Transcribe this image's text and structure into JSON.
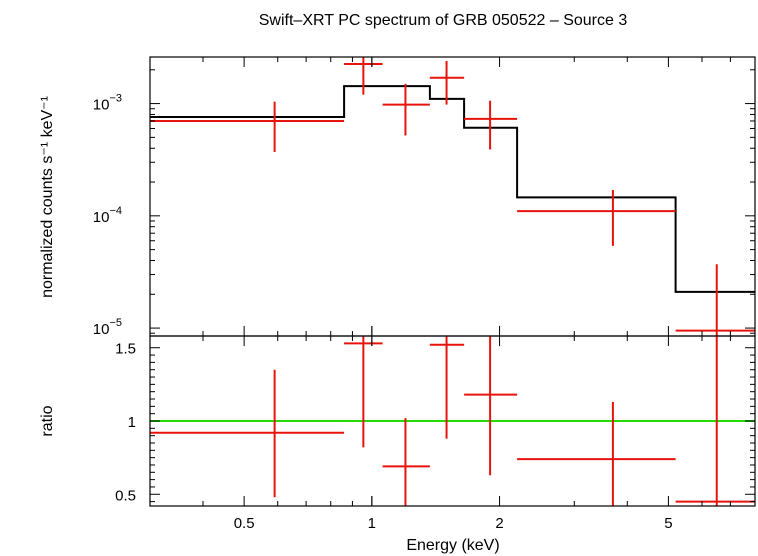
{
  "chart_data": [
    {
      "type": "scatter",
      "title": "Swift–XRT PC spectrum of GRB 050522 – Source 3",
      "ylabel": "normalized counts s⁻¹ keV⁻¹",
      "xlabel": "",
      "xscale": "log",
      "yscale": "log",
      "xlim": [
        0.3,
        8.0
      ],
      "ylim": [
        8.5e-06,
        0.0026
      ],
      "yticks": [
        {
          "value": 0.001,
          "base": "10",
          "exp": "−3"
        },
        {
          "value": 0.0001,
          "base": "10",
          "exp": "−4"
        },
        {
          "value": 1e-05,
          "base": "10",
          "exp": "−5"
        }
      ],
      "data_color": "#e8140c",
      "model_color": "#000000",
      "series": [
        {
          "kind": "data",
          "points": [
            {
              "x": 0.59,
              "xlo": 0.3,
              "xhi": 0.86,
              "y": 0.0007,
              "ylo": 0.00037,
              "yhi": 0.00104
            },
            {
              "x": 0.955,
              "xlo": 0.86,
              "xhi": 1.06,
              "y": 0.00225,
              "ylo": 0.0012,
              "yhi": 0.0027
            },
            {
              "x": 1.2,
              "xlo": 1.06,
              "xhi": 1.37,
              "y": 0.00098,
              "ylo": 0.00052,
              "yhi": 0.0015
            },
            {
              "x": 1.5,
              "xlo": 1.37,
              "xhi": 1.65,
              "y": 0.0017,
              "ylo": 0.00098,
              "yhi": 0.0024
            },
            {
              "x": 1.9,
              "xlo": 1.65,
              "xhi": 2.2,
              "y": 0.00073,
              "ylo": 0.00039,
              "yhi": 0.00106
            },
            {
              "x": 3.7,
              "xlo": 2.2,
              "xhi": 5.2,
              "y": 0.00011,
              "ylo": 5.4e-05,
              "yhi": 0.00017
            },
            {
              "x": 6.5,
              "xlo": 5.2,
              "xhi": 8.0,
              "y": 9.5e-06,
              "ylo": 8.5e-06,
              "yhi": 3.7e-05
            }
          ]
        },
        {
          "kind": "model",
          "steps": [
            {
              "xlo": 0.3,
              "xhi": 0.86,
              "y": 0.00076
            },
            {
              "xlo": 0.86,
              "xhi": 1.37,
              "y": 0.00143
            },
            {
              "xlo": 1.37,
              "xhi": 1.65,
              "y": 0.0011
            },
            {
              "xlo": 1.65,
              "xhi": 2.2,
              "y": 0.00061
            },
            {
              "xlo": 2.2,
              "xhi": 5.2,
              "y": 0.000146
            },
            {
              "xlo": 5.2,
              "xhi": 8.0,
              "y": 2.1e-05
            }
          ]
        }
      ]
    },
    {
      "type": "scatter",
      "title": "",
      "ylabel": "ratio",
      "xlabel": "Energy (keV)",
      "xscale": "log",
      "xlim": [
        0.3,
        8.0
      ],
      "ylim": [
        0.42,
        1.58
      ],
      "xticks": [
        {
          "value": 0.5,
          "label": "0.5"
        },
        {
          "value": 1,
          "label": "1"
        },
        {
          "value": 2,
          "label": "2"
        },
        {
          "value": 5,
          "label": "5"
        }
      ],
      "yticks": [
        {
          "value": 0.5,
          "label": "0.5"
        },
        {
          "value": 1,
          "label": "1"
        },
        {
          "value": 1.5,
          "label": "1.5"
        }
      ],
      "reference_line": {
        "y": 1,
        "color": "#22dd00"
      },
      "data_color": "#e8140c",
      "series": [
        {
          "kind": "ratio",
          "points": [
            {
              "x": 0.59,
              "xlo": 0.3,
              "xhi": 0.86,
              "y": 0.92,
              "ylo": 0.48,
              "yhi": 1.35
            },
            {
              "x": 0.955,
              "xlo": 0.86,
              "xhi": 1.06,
              "y": 1.53,
              "ylo": 0.82,
              "yhi": 1.58
            },
            {
              "x": 1.2,
              "xlo": 1.06,
              "xhi": 1.37,
              "y": 0.69,
              "ylo": 0.42,
              "yhi": 1.02
            },
            {
              "x": 1.5,
              "xlo": 1.37,
              "xhi": 1.65,
              "y": 1.52,
              "ylo": 0.88,
              "yhi": 1.58
            },
            {
              "x": 1.9,
              "xlo": 1.65,
              "xhi": 2.2,
              "y": 1.18,
              "ylo": 0.63,
              "yhi": 1.58
            },
            {
              "x": 3.7,
              "xlo": 2.2,
              "xhi": 5.2,
              "y": 0.74,
              "ylo": 0.42,
              "yhi": 1.13
            },
            {
              "x": 6.5,
              "xlo": 5.2,
              "xhi": 8.0,
              "y": 0.45,
              "ylo": 0.42,
              "yhi": 1.58
            }
          ]
        }
      ]
    }
  ]
}
